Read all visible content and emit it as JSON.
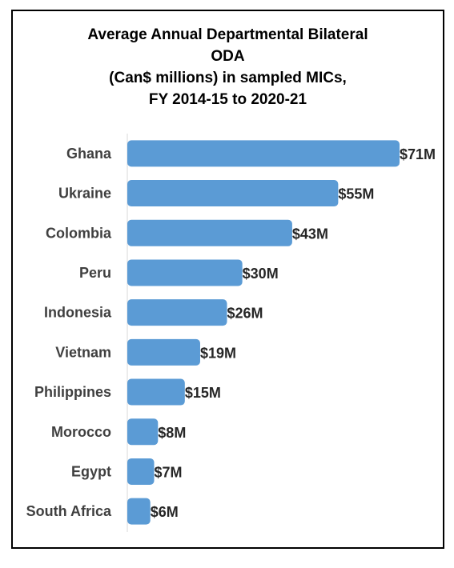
{
  "chart_data": {
    "type": "bar",
    "orientation": "horizontal",
    "title_lines": [
      "Average Annual Departmental Bilateral",
      "ODA",
      "(Can$ millions) in sampled MICs,",
      "FY 2014-15 to 2020-21"
    ],
    "categories": [
      "Ghana",
      "Ukraine",
      "Colombia",
      "Peru",
      "Indonesia",
      "Vietnam",
      "Philippines",
      "Morocco",
      "Egypt",
      "South Africa"
    ],
    "values": [
      71,
      55,
      43,
      30,
      26,
      19,
      15,
      8,
      7,
      6
    ],
    "data_labels": [
      "$71M",
      "$55M",
      "$43M",
      "$30M",
      "$26M",
      "$19M",
      "$15M",
      "$8M",
      "$7M",
      "$6M"
    ],
    "xlim": [
      0,
      71
    ],
    "grid": false,
    "legend": "none",
    "bar_color": "#5B9BD5",
    "axis_color": "#D9D9D9"
  }
}
